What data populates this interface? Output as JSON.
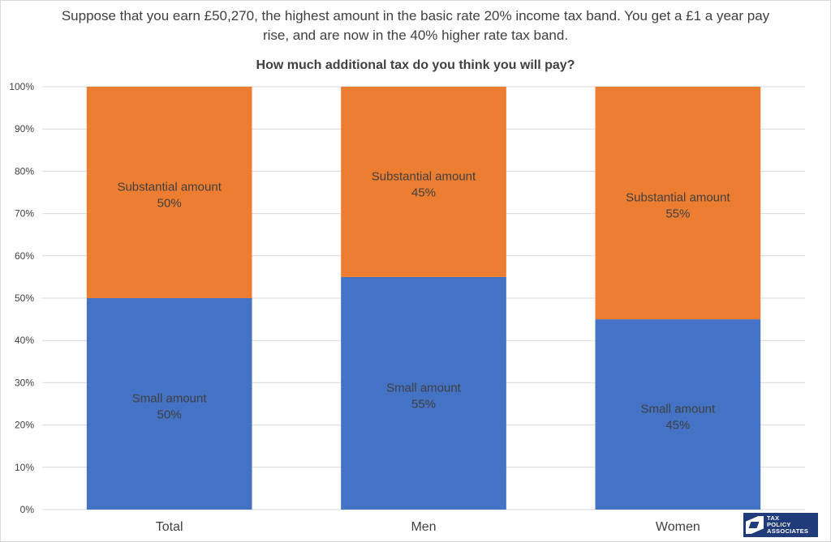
{
  "header": {
    "question": "Suppose that you earn £50,270, the highest amount in the basic rate 20% income tax band. You get a £1 a year pay rise, and are now in the 40% higher rate tax band.",
    "subtitle": "How much additional tax do you think you will pay?"
  },
  "logo": {
    "line1": "TAX",
    "line2": "POLICY",
    "line3": "ASSOCIATES",
    "icon": "tax-policy-associates-logo"
  },
  "colors": {
    "small": "#4472c4",
    "substantial": "#ed7d31",
    "grid": "#d9d9d9",
    "text": "#404040"
  },
  "chart_data": {
    "type": "bar",
    "stacked": true,
    "percent_stacked": true,
    "title": "How much additional tax do you think you will pay?",
    "categories": [
      "Total",
      "Men",
      "Women"
    ],
    "series": [
      {
        "name": "Small amount",
        "values": [
          50,
          55,
          45
        ],
        "labels": [
          "50%",
          "55%",
          "45%"
        ]
      },
      {
        "name": "Substantial amount",
        "values": [
          50,
          45,
          55
        ],
        "labels": [
          "50%",
          "45%",
          "55%"
        ]
      }
    ],
    "ylim": [
      0,
      100
    ],
    "yticks": [
      "0%",
      "10%",
      "20%",
      "30%",
      "40%",
      "50%",
      "60%",
      "70%",
      "80%",
      "90%",
      "100%"
    ],
    "grid": true,
    "legend": "none"
  }
}
